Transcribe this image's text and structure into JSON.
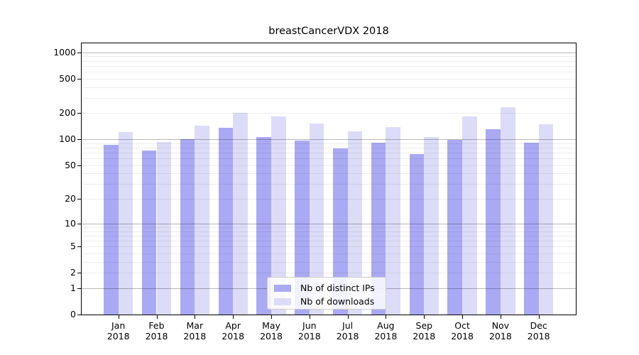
{
  "chart_data": {
    "type": "bar",
    "title": "breastCancerVDX 2018",
    "xlabel": "",
    "ylabel": "",
    "scale": "log1p-symlog",
    "grid": "on (log minor + major decade lines)",
    "legend_position": "bottom-center-inside",
    "year": "2018",
    "categories": [
      "Jan",
      "Feb",
      "Mar",
      "Apr",
      "May",
      "Jun",
      "Jul",
      "Aug",
      "Sep",
      "Oct",
      "Nov",
      "Dec"
    ],
    "series": [
      {
        "name": "Nb of distinct IPs",
        "key": "distinct-ips",
        "color": "#a9a9f4",
        "values": [
          87,
          74,
          100,
          137,
          107,
          97,
          79,
          91,
          67,
          99,
          131,
          92
        ]
      },
      {
        "name": "Nb of downloads",
        "key": "downloads",
        "color": "#dcdcf8",
        "values": [
          121,
          94,
          144,
          200,
          184,
          152,
          124,
          139,
          107,
          183,
          233,
          149
        ]
      }
    ],
    "y_ticks": [
      0,
      1,
      2,
      5,
      10,
      20,
      50,
      100,
      200,
      500,
      1000
    ],
    "ylim": [
      0,
      1270
    ],
    "grid_major_values": [
      1,
      10,
      100,
      1000
    ]
  }
}
